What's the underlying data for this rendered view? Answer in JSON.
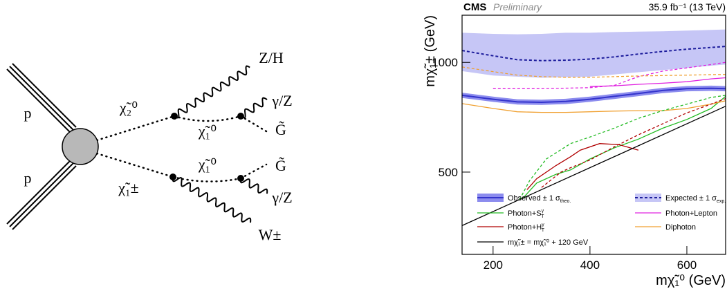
{
  "diagram": {
    "labels": [
      "p",
      "p",
      "χ̃₂⁰",
      "χ̃₁±",
      "χ̃₁⁰",
      "χ̃₁⁰",
      "Z/H",
      "γ/Z",
      "G̃",
      "G̃",
      "γ/Z",
      "W±"
    ]
  },
  "chart_data": {
    "type": "line",
    "title": "CMS",
    "subtitle": "Preliminary",
    "lumi": "35.9 fb⁻¹ (13 TeV)",
    "x_label": "mχ̃₁⁰ (GeV)",
    "y_label": "mχ̃₁± (GeV)",
    "xlim": [
      136,
      680
    ],
    "ylim": [
      125,
      1215
    ],
    "xticks": [
      200,
      400,
      600
    ],
    "yticks": [
      500,
      1000
    ],
    "series": [
      {
        "name": "Observed ± 1 σ",
        "name_sub": "theo.",
        "color": "#3333cc",
        "band_color": "#8c8cee",
        "style": "solid",
        "x": [
          136,
          200,
          250,
          300,
          350,
          400,
          450,
          500,
          550,
          600,
          650,
          680
        ],
        "values": [
          850,
          832,
          820,
          818,
          822,
          832,
          845,
          858,
          872,
          880,
          882,
          880
        ],
        "band_lower": [
          838,
          820,
          808,
          806,
          810,
          820,
          833,
          846,
          860,
          868,
          870,
          868
        ],
        "band_upper": [
          862,
          844,
          832,
          830,
          834,
          844,
          857,
          870,
          884,
          892,
          894,
          892
        ]
      },
      {
        "name": "Expected ± 1 σ",
        "name_sub": "exp.",
        "color": "#1c1c9c",
        "band_color": "#c6c6f6",
        "style": "dashed",
        "x": [
          136,
          200,
          250,
          300,
          350,
          400,
          450,
          500,
          550,
          600,
          650,
          680
        ],
        "values": [
          1054,
          1030,
          1012,
          1008,
          1010,
          1015,
          1025,
          1038,
          1050,
          1060,
          1068,
          1073
        ],
        "band_lower": [
          960,
          940,
          935,
          930,
          932,
          935,
          945,
          955,
          965,
          975,
          985,
          990
        ],
        "band_upper": [
          1135,
          1130,
          1128,
          1130,
          1135,
          1135,
          1138,
          1140,
          1142,
          1145,
          1148,
          1150
        ]
      },
      {
        "name": "Photon+S",
        "name_sup": "γ",
        "name_sub": "T",
        "color": "#22bb22",
        "style": "solid",
        "x": [
          260,
          290,
          330,
          360,
          400,
          450,
          500,
          550,
          600,
          650,
          680
        ],
        "values": [
          377,
          450,
          490,
          510,
          560,
          610,
          650,
          700,
          740,
          790,
          845
        ]
      },
      {
        "name": "Photon+Lepton",
        "color": "#e020e0",
        "style": "solid",
        "x": [
          400,
          450,
          500,
          550,
          600,
          650,
          680
        ],
        "values": [
          890,
          893,
          900,
          905,
          912,
          925,
          930
        ]
      },
      {
        "name": "Photon+H",
        "name_sup": "γ",
        "name_sub": "T",
        "color": "#b00000",
        "style": "solid",
        "x": [
          270,
          290,
          330,
          360,
          380,
          420,
          460,
          500
        ],
        "values": [
          420,
          470,
          530,
          570,
          600,
          630,
          625,
          600
        ]
      },
      {
        "name": "Diphoton",
        "color": "#f0a030",
        "style": "solid",
        "x": [
          136,
          200,
          250,
          300,
          350,
          400,
          450,
          500,
          550,
          600,
          650,
          680
        ],
        "values": [
          812,
          790,
          775,
          772,
          772,
          775,
          778,
          780,
          780,
          790,
          810,
          825
        ]
      },
      {
        "name": "mχ̃₁± = mχ̃₁⁰ + 120 GeV",
        "color": "#000000",
        "style": "solid",
        "x": [
          136,
          680
        ],
        "values": [
          256,
          800
        ]
      },
      {
        "color": "#22bb22",
        "style": "dashed",
        "x": [
          255,
          275,
          310,
          360,
          400,
          450,
          500,
          550,
          600,
          650,
          680
        ],
        "values": [
          375,
          460,
          560,
          630,
          660,
          700,
          745,
          780,
          810,
          840,
          850
        ]
      },
      {
        "color": "#e020e0",
        "style": "dashed",
        "x": [
          200,
          300,
          400,
          450,
          500,
          550,
          600,
          650,
          680
        ],
        "values": [
          880,
          880,
          885,
          895,
          935,
          960,
          975,
          990,
          1000
        ]
      },
      {
        "color": "#b00000",
        "style": "dashed",
        "x": [
          300,
          340,
          360,
          400,
          450,
          500,
          550,
          600,
          650,
          680
        ],
        "values": [
          430,
          500,
          520,
          555,
          615,
          670,
          720,
          770,
          810,
          835
        ]
      },
      {
        "color": "#f0a030",
        "style": "dashed",
        "x": [
          136,
          200,
          250,
          300,
          350,
          400,
          450,
          500,
          550,
          600,
          650,
          680
        ],
        "values": [
          979,
          958,
          942,
          935,
          932,
          932,
          935,
          938,
          940,
          942,
          944,
          945
        ]
      }
    ]
  }
}
